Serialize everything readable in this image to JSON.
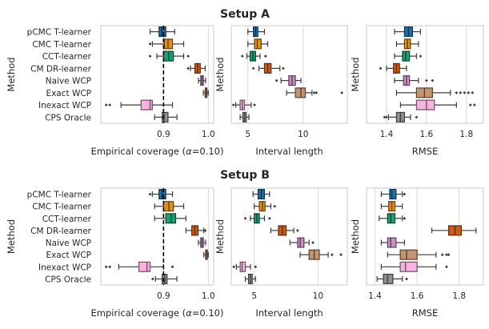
{
  "methods": [
    "pCMC T-learner",
    "CMC T-learner",
    "CCT-learner",
    "CM DR-learner",
    "Naive WCP",
    "Exact WCP",
    "Inexact WCP",
    "CPS Oracle"
  ],
  "colors": [
    "#1f6fa8",
    "#e0901c",
    "#1a9e74",
    "#cf5b17",
    "#c98ec2",
    "#c49370",
    "#f6b3df",
    "#8f8f8f"
  ],
  "ylabel": "Method",
  "chart_data": [
    {
      "type": "box",
      "title": "Setup A",
      "xlabel_prefix": "Empirical coverage (",
      "xlabel_alpha": "α",
      "xlabel_suffix": "=0.10)",
      "xlim": [
        0.76,
        1.012
      ],
      "xticks": [
        0.9,
        1.0
      ],
      "xtick_labels": [
        "0.9",
        "1.0"
      ],
      "refline": 0.9,
      "boxes": [
        {
          "min": 0.87,
          "q1": 0.89,
          "med": 0.896,
          "q3": 0.905,
          "max": 0.925,
          "outliers": []
        },
        {
          "min": 0.875,
          "q1": 0.902,
          "med": 0.91,
          "q3": 0.92,
          "max": 0.945,
          "outliers": [
            0.87
          ]
        },
        {
          "min": 0.885,
          "q1": 0.9,
          "med": 0.912,
          "q3": 0.922,
          "max": 0.945,
          "outliers": [
            0.87,
            0.955
          ]
        },
        {
          "min": 0.96,
          "q1": 0.97,
          "med": 0.976,
          "q3": 0.982,
          "max": 0.993,
          "outliers": [
            0.955
          ]
        },
        {
          "min": 0.978,
          "q1": 0.983,
          "med": 0.986,
          "q3": 0.989,
          "max": 0.994,
          "outliers": []
        },
        {
          "min": 0.989,
          "q1": 0.993,
          "med": 0.995,
          "q3": 0.997,
          "max": 1.0,
          "outliers": []
        },
        {
          "min": 0.805,
          "q1": 0.85,
          "med": 0.87,
          "q3": 0.875,
          "max": 0.92,
          "outliers": [
            0.772,
            0.78
          ]
        },
        {
          "min": 0.88,
          "q1": 0.897,
          "med": 0.901,
          "q3": 0.91,
          "max": 0.93,
          "outliers": []
        }
      ]
    },
    {
      "type": "box",
      "title": "",
      "xlabel": "Interval length",
      "xlim": [
        3.5,
        14.0
      ],
      "xticks": [
        5,
        10
      ],
      "xtick_labels": [
        "5",
        "10"
      ],
      "boxes": [
        {
          "min": 5.0,
          "q1": 5.5,
          "med": 5.7,
          "q3": 5.9,
          "max": 6.5,
          "outliers": []
        },
        {
          "min": 5.0,
          "q1": 5.6,
          "med": 5.85,
          "q3": 6.2,
          "max": 6.8,
          "outliers": []
        },
        {
          "min": 4.9,
          "q1": 5.2,
          "med": 5.45,
          "q3": 5.7,
          "max": 6.1,
          "outliers": [
            4.5,
            6.6
          ]
        },
        {
          "min": 6.0,
          "q1": 6.5,
          "med": 6.8,
          "q3": 7.1,
          "max": 7.9,
          "outliers": [
            5.5,
            8.2
          ]
        },
        {
          "min": 8.0,
          "q1": 8.7,
          "med": 9.0,
          "q3": 9.3,
          "max": 9.8,
          "outliers": [
            7.6
          ]
        },
        {
          "min": 8.5,
          "q1": 9.3,
          "med": 9.8,
          "q3": 10.2,
          "max": 10.8,
          "outliers": [
            11.0,
            11.2,
            13.5
          ]
        },
        {
          "min": 3.9,
          "q1": 4.3,
          "med": 4.5,
          "q3": 4.7,
          "max": 5.3,
          "outliers": [
            3.7,
            5.6
          ]
        },
        {
          "min": 4.3,
          "q1": 4.55,
          "med": 4.7,
          "q3": 4.85,
          "max": 5.1,
          "outliers": []
        }
      ]
    },
    {
      "type": "box",
      "title": "",
      "xlabel": "RMSE",
      "xlim": [
        1.3,
        1.885
      ],
      "xticks": [
        1.4,
        1.6,
        1.8
      ],
      "xtick_labels": [
        "1.4",
        "1.6",
        "1.8"
      ],
      "boxes": [
        {
          "min": 1.44,
          "q1": 1.49,
          "med": 1.51,
          "q3": 1.53,
          "max": 1.57,
          "outliers": []
        },
        {
          "min": 1.45,
          "q1": 1.49,
          "med": 1.505,
          "q3": 1.52,
          "max": 1.56,
          "outliers": []
        },
        {
          "min": 1.44,
          "q1": 1.48,
          "med": 1.495,
          "q3": 1.515,
          "max": 1.55,
          "outliers": [
            1.57
          ]
        },
        {
          "min": 1.4,
          "q1": 1.435,
          "med": 1.45,
          "q3": 1.465,
          "max": 1.5,
          "outliers": [
            1.37
          ]
        },
        {
          "min": 1.44,
          "q1": 1.485,
          "med": 1.5,
          "q3": 1.515,
          "max": 1.56,
          "outliers": [
            1.6,
            1.63
          ]
        },
        {
          "min": 1.45,
          "q1": 1.55,
          "med": 1.59,
          "q3": 1.63,
          "max": 1.72,
          "outliers": [
            1.75,
            1.77,
            1.79,
            1.81,
            1.83
          ]
        },
        {
          "min": 1.47,
          "q1": 1.55,
          "med": 1.6,
          "q3": 1.64,
          "max": 1.75,
          "outliers": [
            1.82,
            1.84
          ]
        },
        {
          "min": 1.41,
          "q1": 1.45,
          "med": 1.47,
          "q3": 1.49,
          "max": 1.52,
          "outliers": [
            1.39,
            1.4,
            1.55
          ]
        }
      ]
    },
    {
      "type": "box",
      "title": "Setup B",
      "xlabel_prefix": "Empirical coverage (",
      "xlabel_alpha": "α",
      "xlabel_suffix": "=0.10)",
      "xlim": [
        0.76,
        1.012
      ],
      "xticks": [
        0.9,
        1.0
      ],
      "xtick_labels": [
        "0.9",
        "1.0"
      ],
      "refline": 0.9,
      "boxes": [
        {
          "min": 0.875,
          "q1": 0.89,
          "med": 0.897,
          "q3": 0.905,
          "max": 0.92,
          "outliers": [
            0.87
          ]
        },
        {
          "min": 0.88,
          "q1": 0.9,
          "med": 0.912,
          "q3": 0.922,
          "max": 0.945,
          "outliers": []
        },
        {
          "min": 0.88,
          "q1": 0.905,
          "med": 0.917,
          "q3": 0.927,
          "max": 0.95,
          "outliers": []
        },
        {
          "min": 0.95,
          "q1": 0.963,
          "med": 0.97,
          "q3": 0.977,
          "max": 0.99,
          "outliers": [
            0.993
          ]
        },
        {
          "min": 0.978,
          "q1": 0.983,
          "med": 0.986,
          "q3": 0.989,
          "max": 0.994,
          "outliers": []
        },
        {
          "min": 0.99,
          "q1": 0.994,
          "med": 0.996,
          "q3": 0.998,
          "max": 1.0,
          "outliers": []
        },
        {
          "min": 0.8,
          "q1": 0.845,
          "med": 0.863,
          "q3": 0.87,
          "max": 0.9,
          "outliers": [
            0.772,
            0.78,
            0.92
          ]
        },
        {
          "min": 0.882,
          "q1": 0.897,
          "med": 0.903,
          "q3": 0.908,
          "max": 0.93,
          "outliers": [
            0.876
          ]
        }
      ]
    },
    {
      "type": "box",
      "title": "",
      "xlabel": "Interval length",
      "xlim": [
        3.2,
        12.3
      ],
      "xticks": [
        5,
        10
      ],
      "xtick_labels": [
        "5",
        "10"
      ],
      "boxes": [
        {
          "min": 4.9,
          "q1": 5.3,
          "med": 5.55,
          "q3": 5.8,
          "max": 6.2,
          "outliers": []
        },
        {
          "min": 5.0,
          "q1": 5.4,
          "med": 5.65,
          "q3": 5.85,
          "max": 6.3,
          "outliers": [
            6.6
          ]
        },
        {
          "min": 4.7,
          "q1": 5.0,
          "med": 5.2,
          "q3": 5.4,
          "max": 5.8,
          "outliers": [
            4.3,
            6.2
          ]
        },
        {
          "min": 6.3,
          "q1": 6.9,
          "med": 7.2,
          "q3": 7.5,
          "max": 8.1,
          "outliers": [
            8.4
          ]
        },
        {
          "min": 7.8,
          "q1": 8.4,
          "med": 8.6,
          "q3": 8.9,
          "max": 9.3,
          "outliers": [
            9.6
          ]
        },
        {
          "min": 8.6,
          "q1": 9.3,
          "med": 9.7,
          "q3": 10.1,
          "max": 10.8,
          "outliers": [
            11.1,
            11.8
          ]
        },
        {
          "min": 3.6,
          "q1": 3.9,
          "med": 4.05,
          "q3": 4.3,
          "max": 4.7,
          "outliers": [
            3.4,
            5.1
          ]
        },
        {
          "min": 4.3,
          "q1": 4.55,
          "med": 4.7,
          "q3": 4.85,
          "max": 5.1,
          "outliers": []
        }
      ]
    },
    {
      "type": "box",
      "title": "",
      "xlabel": "RMSE",
      "xlim": [
        1.36,
        1.915
      ],
      "xticks": [
        1.4,
        1.6,
        1.8
      ],
      "xtick_labels": [
        "1.4",
        "1.6",
        "1.8"
      ],
      "boxes": [
        {
          "min": 1.43,
          "q1": 1.47,
          "med": 1.48,
          "q3": 1.5,
          "max": 1.53,
          "outliers": [
            1.54
          ]
        },
        {
          "min": 1.43,
          "q1": 1.465,
          "med": 1.48,
          "q3": 1.495,
          "max": 1.53,
          "outliers": []
        },
        {
          "min": 1.42,
          "q1": 1.46,
          "med": 1.475,
          "q3": 1.495,
          "max": 1.53,
          "outliers": [
            1.54
          ]
        },
        {
          "min": 1.67,
          "q1": 1.75,
          "med": 1.78,
          "q3": 1.81,
          "max": 1.88,
          "outliers": []
        },
        {
          "min": 1.43,
          "q1": 1.46,
          "med": 1.475,
          "q3": 1.5,
          "max": 1.54,
          "outliers": []
        },
        {
          "min": 1.46,
          "q1": 1.52,
          "med": 1.55,
          "q3": 1.6,
          "max": 1.69,
          "outliers": [
            1.72,
            1.74,
            1.75
          ]
        },
        {
          "min": 1.43,
          "q1": 1.52,
          "med": 1.545,
          "q3": 1.6,
          "max": 1.69,
          "outliers": [
            1.74
          ]
        },
        {
          "min": 1.41,
          "q1": 1.44,
          "med": 1.46,
          "q3": 1.485,
          "max": 1.53,
          "outliers": [
            1.55
          ]
        }
      ]
    }
  ]
}
